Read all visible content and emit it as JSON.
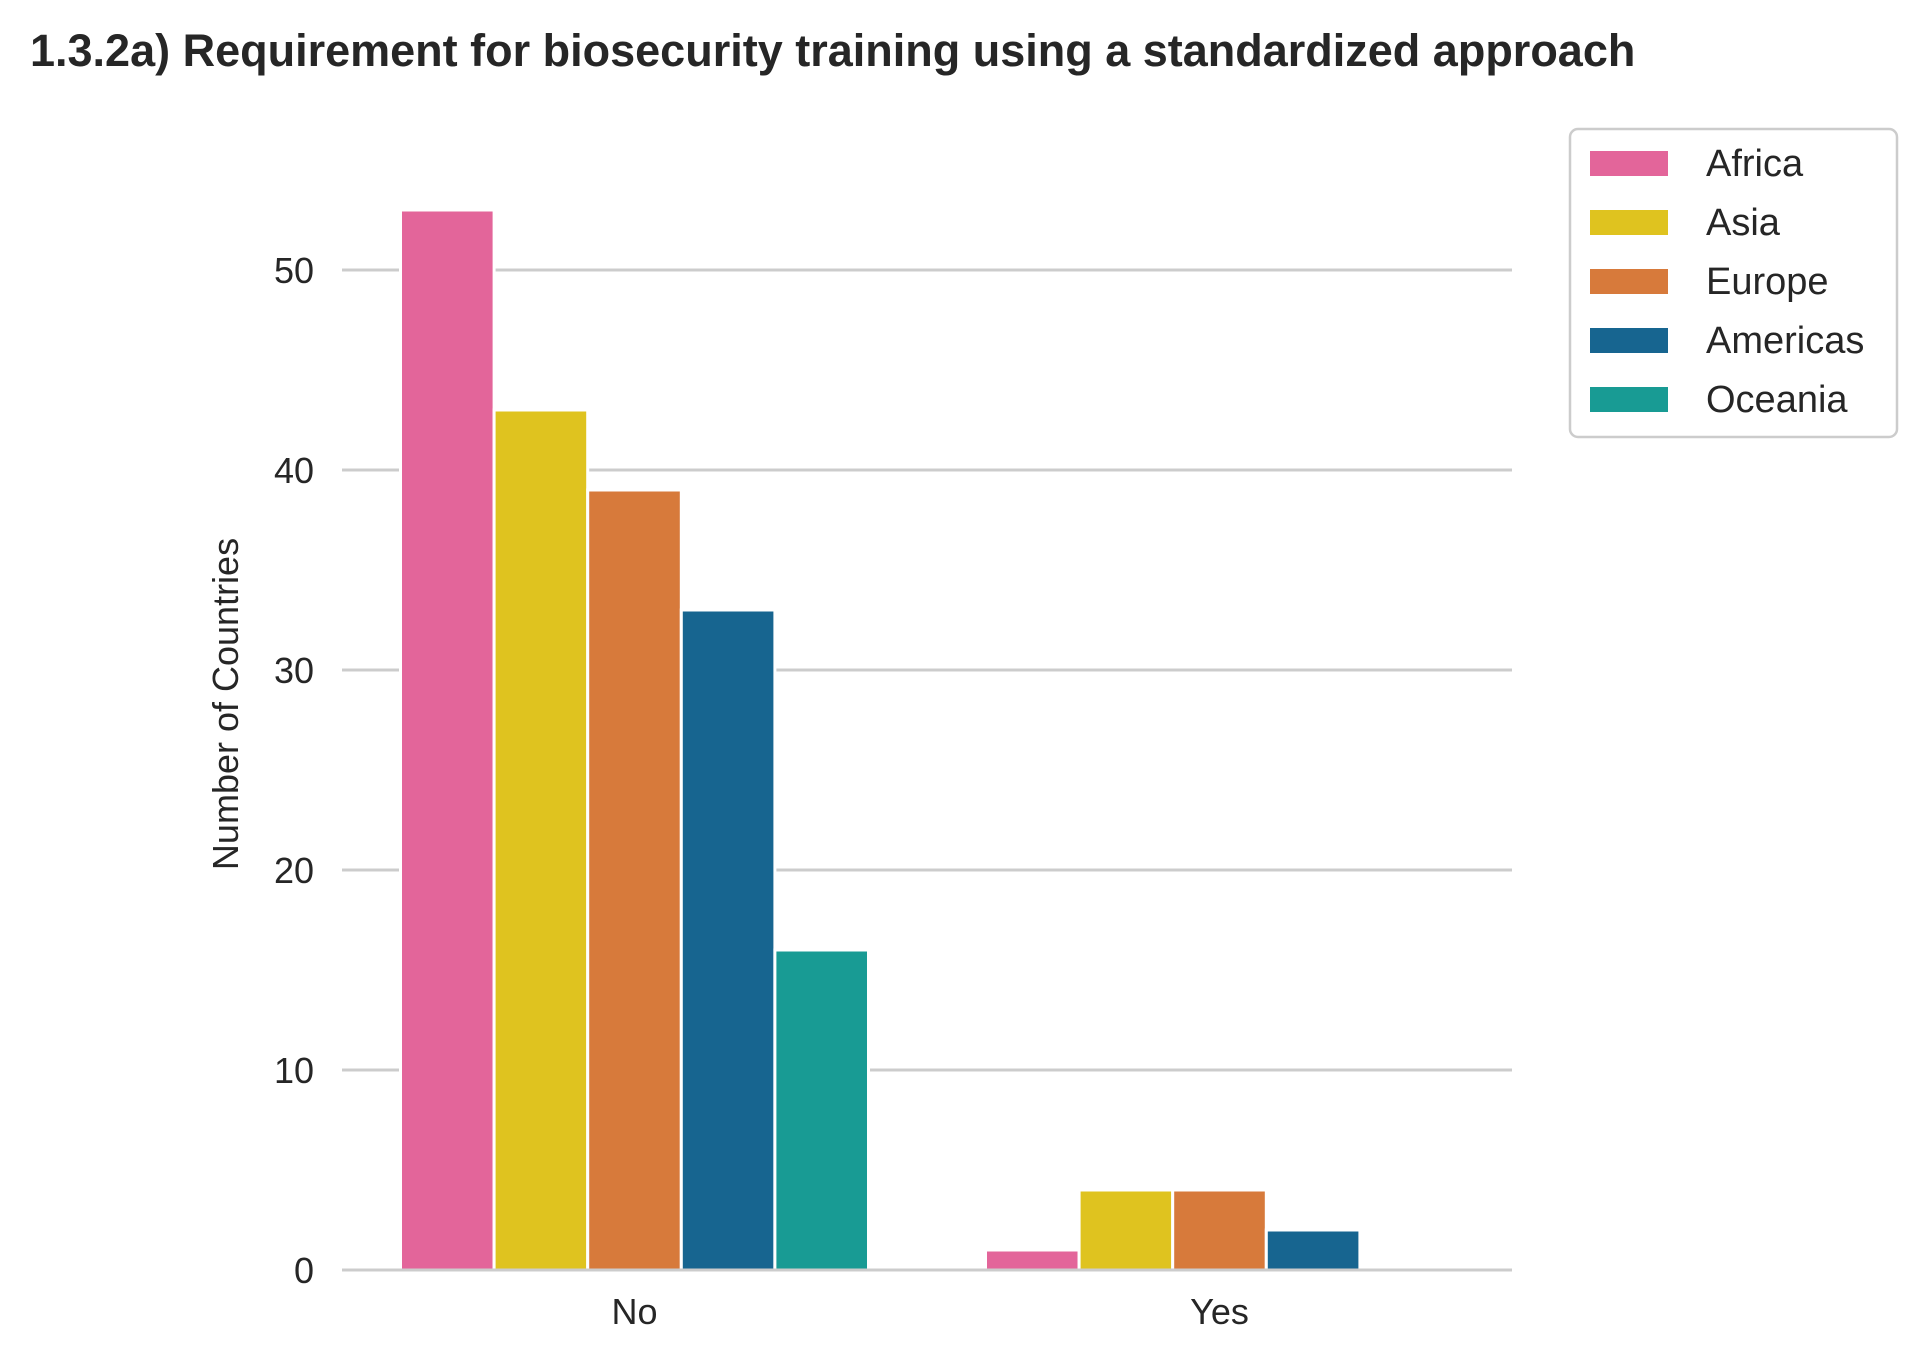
{
  "chart_data": {
    "type": "bar",
    "title": "1.3.2a) Requirement for biosecurity training using a standardized approach",
    "xlabel": "",
    "ylabel": "Number of Countries",
    "categories": [
      "No",
      "Yes"
    ],
    "ylim": [
      0,
      56
    ],
    "yticks": [
      0,
      10,
      20,
      30,
      40,
      50
    ],
    "grid": "horizontal",
    "legend_position": "outside-top-right",
    "series": [
      {
        "name": "Africa",
        "color": "#e3659a",
        "values": [
          53,
          1
        ]
      },
      {
        "name": "Asia",
        "color": "#dfc31f",
        "values": [
          43,
          4
        ]
      },
      {
        "name": "Europe",
        "color": "#d77a3b",
        "values": [
          39,
          4
        ]
      },
      {
        "name": "Americas",
        "color": "#176590",
        "values": [
          33,
          2
        ]
      },
      {
        "name": "Oceania",
        "color": "#189b94",
        "values": [
          16,
          0
        ]
      }
    ]
  }
}
